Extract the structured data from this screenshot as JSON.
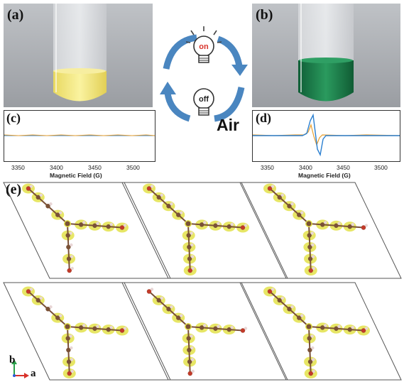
{
  "panels": {
    "a": "(a)",
    "b": "(b)",
    "c": "(c)",
    "d": "(d)",
    "e": "(e)"
  },
  "center": {
    "on_label": "on",
    "off_label": "off",
    "air_label": "Air"
  },
  "epr": {
    "xlabel": "Magnetic Field (G)",
    "ticks": [
      "3350",
      "3400",
      "3450",
      "3500"
    ]
  },
  "axes": {
    "b_label": "b",
    "a_label": "a"
  },
  "colors": {
    "yellow_solution": "#f2e68a",
    "green_solution": "#1f7a4a",
    "arrow_blue": "#4a86c0",
    "epr_blue": "#2a7fd0",
    "epr_orange": "#e9a030",
    "density_yellow": "#e3e24a",
    "carbon_brown": "#7a5136",
    "oxygen_red": "#c23a2a"
  }
}
